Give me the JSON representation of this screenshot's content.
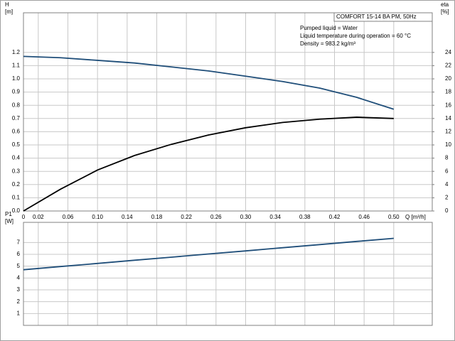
{
  "chart_data": [
    {
      "type": "line",
      "ylabel": "H",
      "ylabel_unit": "[m]",
      "y2label": "eta",
      "y2label_unit": "[%]",
      "xlabel": "Q [m³/h]",
      "annotations": {
        "title": "COMFORT 15-14 BA PM, 50Hz",
        "lines": [
          "Pumped liquid = Water",
          "Liquid temperature during operation = 60 °C",
          "Density = 983.2 kg/m³"
        ]
      },
      "x": [
        0,
        0.05,
        0.1,
        0.15,
        0.2,
        0.25,
        0.3,
        0.35,
        0.4,
        0.45,
        0.5
      ],
      "series": [
        {
          "name": "H",
          "color": "#1f4e79",
          "values": [
            1.17,
            1.16,
            1.14,
            1.12,
            1.09,
            1.06,
            1.02,
            0.98,
            0.93,
            0.86,
            0.77
          ]
        },
        {
          "name": "eta",
          "color": "#000000",
          "axis": "y2",
          "values": [
            0,
            3.3,
            6.2,
            8.4,
            10.1,
            11.5,
            12.6,
            13.4,
            13.9,
            14.2,
            14.0
          ]
        }
      ],
      "xlim": [
        0,
        0.552
      ],
      "xticks": [
        0,
        0.02,
        0.06,
        {
          "value": 0.1,
          "label": "0.10"
        },
        0.14,
        0.18,
        0.22,
        0.26,
        {
          "value": 0.3,
          "label": "0.30"
        },
        0.34,
        0.38,
        0.42,
        0.46,
        {
          "value": 0.5,
          "label": "0.50"
        }
      ],
      "ylim": [
        0,
        1.5
      ],
      "yticks": [
        {
          "value": 0,
          "label": "0.0"
        },
        0.1,
        0.2,
        0.3,
        0.4,
        0.5,
        0.6,
        0.7,
        0.8,
        0.9,
        {
          "value": 1,
          "label": "1.0"
        },
        1.1,
        1.2
      ],
      "y2lim": [
        0,
        30
      ],
      "y2ticks": [
        0,
        2,
        4,
        6,
        8,
        10,
        12,
        14,
        16,
        18,
        20,
        22,
        24
      ],
      "grid": true
    },
    {
      "type": "line",
      "ylabel": "P1",
      "ylabel_unit": "[W]",
      "x": [
        0,
        0.05,
        0.1,
        0.15,
        0.2,
        0.25,
        0.3,
        0.35,
        0.4,
        0.45,
        0.5
      ],
      "series": [
        {
          "name": "P1",
          "color": "#1f4e79",
          "values": [
            4.7,
            4.97,
            5.23,
            5.5,
            5.76,
            6.03,
            6.29,
            6.56,
            6.82,
            7.09,
            7.35
          ]
        }
      ],
      "xlim": [
        0,
        0.552
      ],
      "ylim": [
        0,
        8.7
      ],
      "yticks": [
        1,
        2,
        3,
        4,
        5,
        6,
        7
      ],
      "grid": true
    }
  ]
}
